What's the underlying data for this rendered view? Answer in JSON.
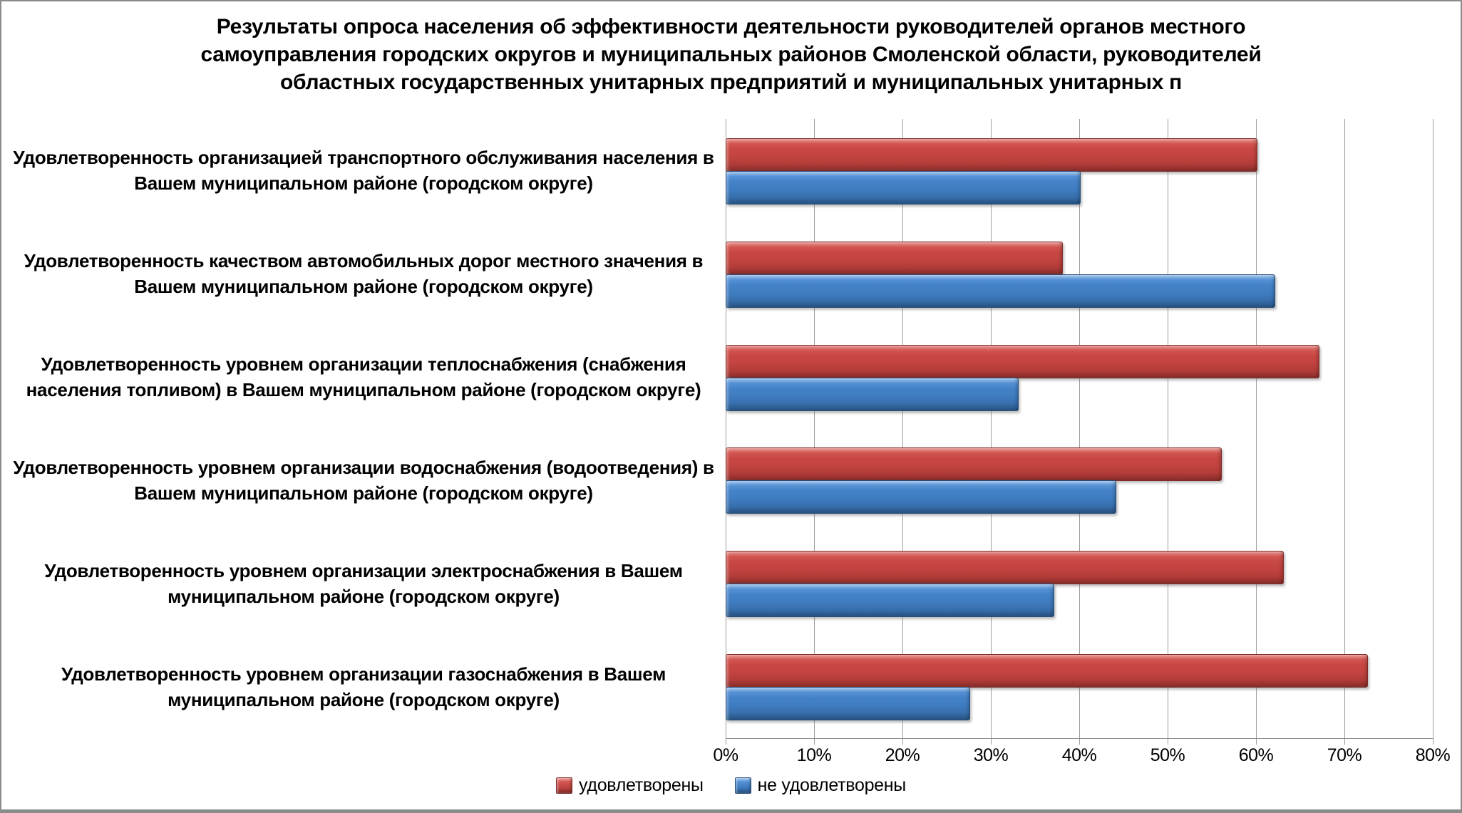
{
  "title": {
    "lines": [
      "Результаты опроса населения об эффективности деятельности руководителей органов местного",
      "самоуправления городских округов и муниципальных районов Смоленской области, руководителей",
      "областных государственных унитарных предприятий и муниципальных унитарных п"
    ]
  },
  "chart_data": {
    "type": "bar",
    "orientation": "horizontal",
    "title": "Результаты опроса населения об эффективности деятельности руководителей органов местного самоуправления городских округов и муниципальных районов Смоленской области, руководителей областных государственных унитарных предприятий и муниципальных унитарных п",
    "categories": [
      "Удовлетворенность организацией транспортного обслуживания населения в Вашем муниципальном районе (городском округе)",
      "Удовлетворенность качеством автомобильных дорог местного значения в Вашем муниципальном районе (городском округе)",
      "Удовлетворенность уровнем организации теплоснабжения (снабжения населения топливом) в Вашем муниципальном районе (городском округе)",
      "Удовлетворенность уровнем организации водоснабжения (водоотведения) в Вашем муниципальном районе (городском округе)",
      "Удовлетворенность уровнем организации электроснабжения в Вашем муниципальном районе (городском округе)",
      "Удовлетворенность уровнем организации газоснабжения в Вашем муниципальном районе (городском округе)"
    ],
    "series": [
      {
        "name": "удовлетворены",
        "color": "#c24440",
        "values": [
          60,
          38,
          67,
          56,
          63,
          72.5
        ]
      },
      {
        "name": "не удовлетворены",
        "color": "#3f7cc0",
        "values": [
          40,
          62,
          33,
          44,
          37,
          27.5
        ]
      }
    ],
    "x_ticks": [
      "0%",
      "10%",
      "20%",
      "30%",
      "40%",
      "50%",
      "60%",
      "70%",
      "80%"
    ],
    "xlim": [
      0,
      80
    ],
    "unit": "%",
    "ylabel": "",
    "xlabel": "",
    "grid": "vertical",
    "legend_position": "bottom"
  },
  "colors": {
    "satisfied": "#c24440",
    "not_satisfied": "#3f7cc0",
    "gridline": "#9d9d9d",
    "axis": "#8a8a8a",
    "frame_border": "#8b8b8b",
    "background": "#ffffff",
    "text": "#000000"
  }
}
